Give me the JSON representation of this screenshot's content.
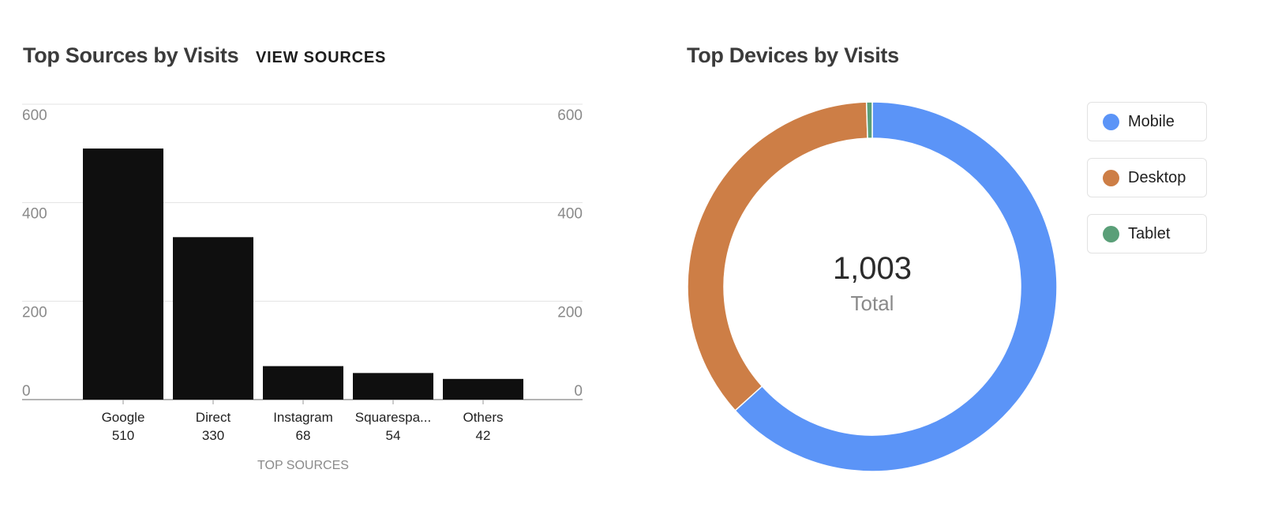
{
  "sources_panel": {
    "title": "Top Sources by Visits",
    "view_link": "VIEW SOURCES"
  },
  "devices_panel": {
    "title": "Top Devices by Visits",
    "center_value": "1,003",
    "center_label": "Total"
  },
  "chart_data": [
    {
      "type": "bar",
      "categories": [
        "Google",
        "Direct",
        "Instagram",
        "Squarespa...",
        "Others"
      ],
      "values": [
        510,
        330,
        68,
        54,
        42
      ],
      "value_labels": [
        "510",
        "330",
        "68",
        "54",
        "42"
      ],
      "xlabel": "TOP SOURCES",
      "ylabel": "",
      "ylim": [
        0,
        600
      ],
      "yticks": [
        0,
        200,
        400,
        600
      ],
      "ytick_labels": [
        "0",
        "200",
        "400",
        "600"
      ],
      "grid": true,
      "bar_color": "#0f0f0f"
    },
    {
      "type": "pie",
      "style": "donut",
      "labels": [
        "Mobile",
        "Desktop",
        "Tablet"
      ],
      "values": [
        635,
        363,
        5
      ],
      "colors": [
        "#5b94f7",
        "#cd7e46",
        "#5a9f78"
      ],
      "legend": "right"
    }
  ]
}
